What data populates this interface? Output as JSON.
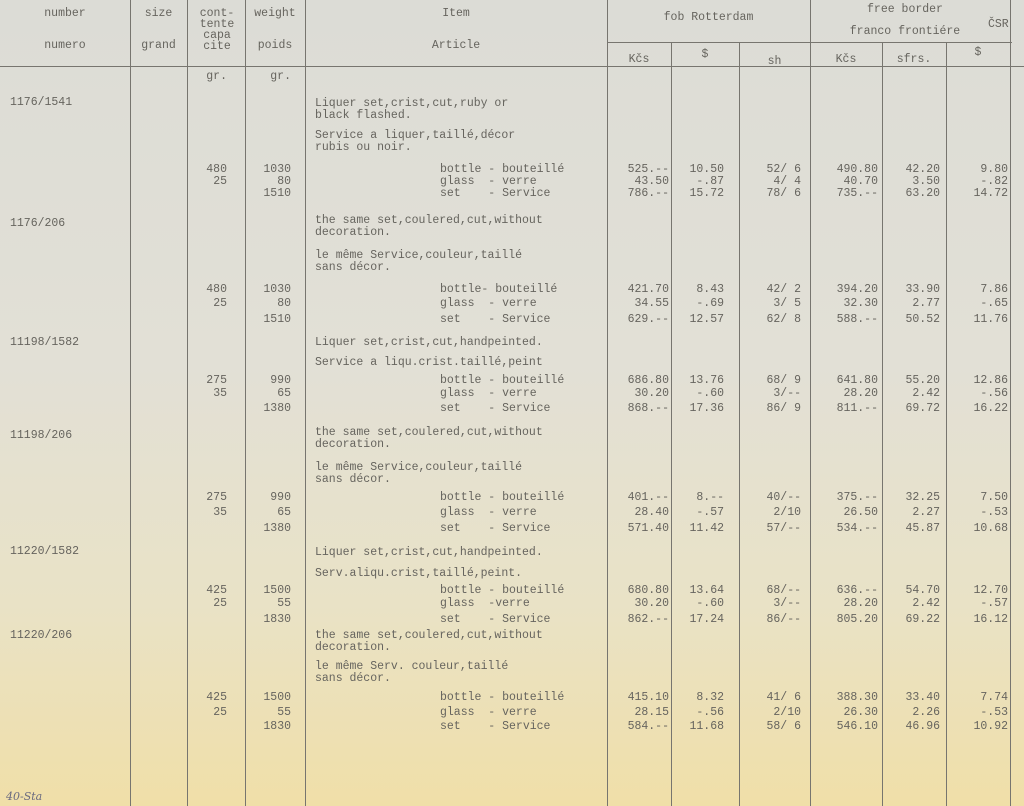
{
  "header": {
    "number": "number",
    "numero": "numero",
    "size": "size",
    "grand": "grand",
    "contents": "cont-\ntente\ncapa\ncite",
    "weight": "weight",
    "poids": "poids",
    "item": "Item",
    "article": "Article",
    "fob": "fob Rotterdam",
    "free_border": "free border",
    "franco": "franco frontiére",
    "csr": "ČSR",
    "kcs1": "Kčs",
    "usd1": "$",
    "sh": "sh",
    "kcs2": "Kčs",
    "sfrs": "sfrs.",
    "usd2": "$",
    "unit_contents": "gr.",
    "unit_weight": "gr."
  },
  "entries": [
    {
      "number": "1176/1541",
      "desc_en": "Liquer set,crist,cut,ruby or\nblack flashed.",
      "desc_fr": "Service a liquer,taillé,décor\nrubis ou noir.",
      "rows": [
        {
          "contents": "480",
          "weight": "1030",
          "item": "bottle - bouteillé",
          "kcs": "525.--",
          "usd": "10.50",
          "sh": "52/ 6",
          "kcs2": "490.80",
          "sfrs": "42.20",
          "usd2": "9.80"
        },
        {
          "contents": "25",
          "weight": "80",
          "item": "glass  - verre",
          "kcs": "43.50",
          "usd": "-.87",
          "sh": "4/ 4",
          "kcs2": "40.70",
          "sfrs": "3.50",
          "usd2": "-.82"
        },
        {
          "contents": "",
          "weight": "1510",
          "item": "set    - Service",
          "kcs": "786.--",
          "usd": "15.72",
          "sh": "78/ 6",
          "kcs2": "735.--",
          "sfrs": "63.20",
          "usd2": "14.72"
        }
      ]
    },
    {
      "number": "1176/206",
      "desc_en": "the same set,coulered,cut,without\ndecoration.",
      "desc_fr": "le même Service,couleur,taillé\nsans décor.",
      "rows": [
        {
          "contents": "480",
          "weight": "1030",
          "item": "bottle- bouteillé",
          "kcs": "421.70",
          "usd": "8.43",
          "sh": "42/ 2",
          "kcs2": "394.20",
          "sfrs": "33.90",
          "usd2": "7.86"
        },
        {
          "contents": "25",
          "weight": "80",
          "item": "glass  - verre",
          "kcs": "34.55",
          "usd": "-.69",
          "sh": "3/ 5",
          "kcs2": "32.30",
          "sfrs": "2.77",
          "usd2": "-.65"
        },
        {
          "contents": "",
          "weight": "1510",
          "item": "set    - Service",
          "kcs": "629.--",
          "usd": "12.57",
          "sh": "62/ 8",
          "kcs2": "588.--",
          "sfrs": "50.52",
          "usd2": "11.76"
        }
      ]
    },
    {
      "number": "11198/1582",
      "desc_en": "Liquer set,crist,cut,handpeinted.",
      "desc_fr": "Service a liqu.crist.taillé,peint",
      "rows": [
        {
          "contents": "275",
          "weight": "990",
          "item": "bottle - bouteillé",
          "kcs": "686.80",
          "usd": "13.76",
          "sh": "68/ 9",
          "kcs2": "641.80",
          "sfrs": "55.20",
          "usd2": "12.86"
        },
        {
          "contents": "35",
          "weight": "65",
          "item": "glass  - verre",
          "kcs": "30.20",
          "usd": "-.60",
          "sh": "3/--",
          "kcs2": "28.20",
          "sfrs": "2.42",
          "usd2": "-.56"
        },
        {
          "contents": "",
          "weight": "1380",
          "item": "set    - Service",
          "kcs": "868.--",
          "usd": "17.36",
          "sh": "86/ 9",
          "kcs2": "811.--",
          "sfrs": "69.72",
          "usd2": "16.22"
        }
      ]
    },
    {
      "number": "11198/206",
      "desc_en": "the same set,coulered,cut,without\ndecoration.",
      "desc_fr": "le même Service,couleur,taillé\nsans décor.",
      "rows": [
        {
          "contents": "275",
          "weight": "990",
          "item": "bottle - bouteillé",
          "kcs": "401.--",
          "usd": "8.--",
          "sh": "40/--",
          "kcs2": "375.--",
          "sfrs": "32.25",
          "usd2": "7.50"
        },
        {
          "contents": "35",
          "weight": "65",
          "item": "glass  - verre",
          "kcs": "28.40",
          "usd": "-.57",
          "sh": "2/10",
          "kcs2": "26.50",
          "sfrs": "2.27",
          "usd2": "-.53"
        },
        {
          "contents": "",
          "weight": "1380",
          "item": "set    - Service",
          "kcs": "571.40",
          "usd": "11.42",
          "sh": "57/--",
          "kcs2": "534.--",
          "sfrs": "45.87",
          "usd2": "10.68"
        }
      ]
    },
    {
      "number": "11220/1582",
      "desc_en": "Liquer set,crist,cut,handpeinted.",
      "desc_fr": "Serv.aliqu.crist,taillé,peint.",
      "rows": [
        {
          "contents": "425",
          "weight": "1500",
          "item": "bottle - bouteillé",
          "kcs": "680.80",
          "usd": "13.64",
          "sh": "68/--",
          "kcs2": "636.--",
          "sfrs": "54.70",
          "usd2": "12.70"
        },
        {
          "contents": "25",
          "weight": "55",
          "item": "glass  -verre",
          "kcs": "30.20",
          "usd": "-.60",
          "sh": "3/--",
          "kcs2": "28.20",
          "sfrs": "2.42",
          "usd2": "-.57"
        },
        {
          "contents": "",
          "weight": "1830",
          "item": "set    - Service",
          "kcs": "862.--",
          "usd": "17.24",
          "sh": "86/--",
          "kcs2": "805.20",
          "sfrs": "69.22",
          "usd2": "16.12"
        }
      ]
    },
    {
      "number": "11220/206",
      "desc_en": "the same set,coulered,cut,without\ndecoration.",
      "desc_fr": "le même Serv. couleur,taillé\nsans décor.",
      "rows": [
        {
          "contents": "425",
          "weight": "1500",
          "item": "bottle - bouteillé",
          "kcs": "415.10",
          "usd": "8.32",
          "sh": "41/ 6",
          "kcs2": "388.30",
          "sfrs": "33.40",
          "usd2": "7.74"
        },
        {
          "contents": "25",
          "weight": "55",
          "item": "glass  - verre",
          "kcs": "28.15",
          "usd": "-.56",
          "sh": "2/10",
          "kcs2": "26.30",
          "sfrs": "2.26",
          "usd2": "-.53"
        },
        {
          "contents": "",
          "weight": "1830",
          "item": "set    - Service",
          "kcs": "584.--",
          "usd": "11.68",
          "sh": "58/ 6",
          "kcs2": "546.10",
          "sfrs": "46.96",
          "usd2": "10.92"
        }
      ]
    }
  ],
  "handwritten_note": "40-Sta"
}
